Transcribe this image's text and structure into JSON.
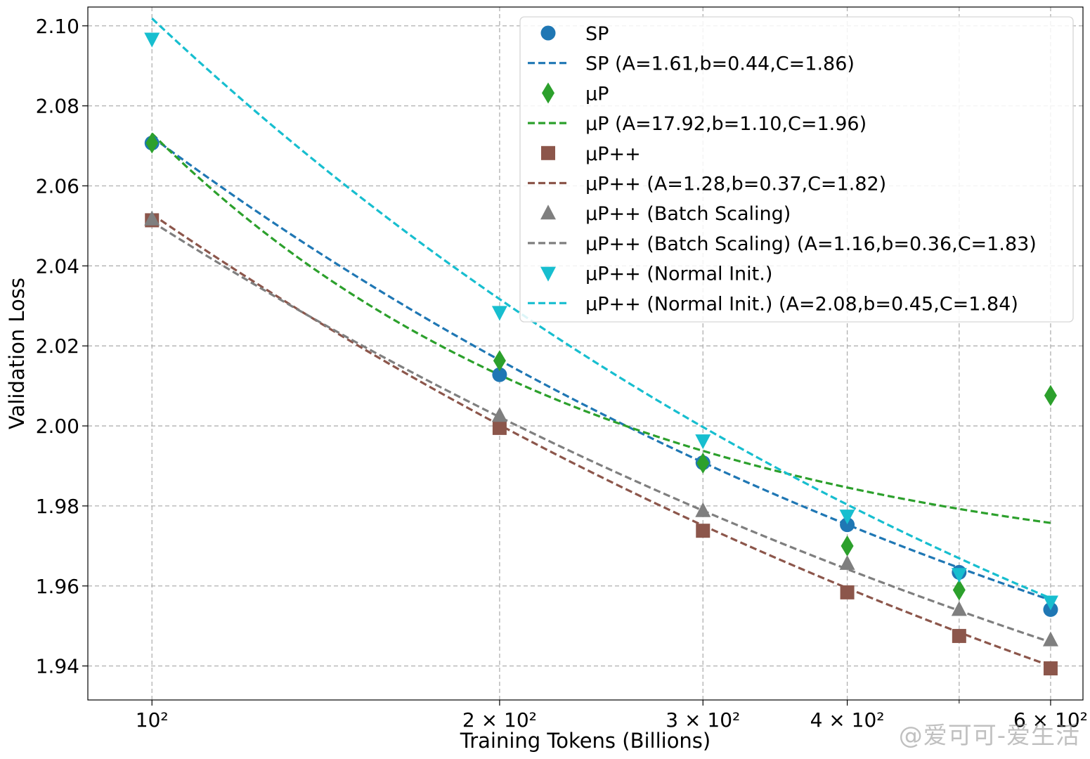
{
  "chart_data": {
    "type": "scatter",
    "xlabel": "Training Tokens (Billions)",
    "ylabel": "Validation Loss",
    "xscale": "log",
    "xlim": [
      88,
      640
    ],
    "ylim": [
      1.9315,
      2.1047
    ],
    "grid": true,
    "legend_position": "top-right",
    "x_ticks": [
      {
        "value": 100,
        "label": "10²"
      },
      {
        "value": 200,
        "label": "2 × 10²"
      },
      {
        "value": 300,
        "label": "3 × 10²"
      },
      {
        "value": 400,
        "label": "4 × 10²"
      },
      {
        "value": 600,
        "label": "6 × 10²"
      }
    ],
    "y_ticks": [
      1.94,
      1.96,
      1.98,
      2.0,
      2.02,
      2.04,
      2.06,
      2.08,
      2.1
    ],
    "y_tick_labels": [
      "1.94",
      "1.96",
      "1.98",
      "2.00",
      "2.02",
      "2.04",
      "2.06",
      "2.08",
      "2.10"
    ],
    "series": [
      {
        "name": "SP",
        "marker": "circle",
        "color": "#1f77b4",
        "x": [
          100,
          200,
          300,
          400,
          500,
          600
        ],
        "y": [
          2.0707,
          2.0128,
          1.9908,
          1.9753,
          1.9634,
          1.9541
        ],
        "fit_label": "SP (A=1.61,b=0.44,C=1.86)",
        "fit": {
          "A": 1.61,
          "b": 0.44,
          "C": 1.86
        }
      },
      {
        "name": "μP",
        "marker": "diamond",
        "color": "#2ca02c",
        "x": [
          100,
          200,
          300,
          400,
          500,
          600
        ],
        "y": [
          2.0707,
          2.0163,
          1.9907,
          1.97,
          1.959,
          2.0076
        ],
        "fit_label": "μP (A=17.92,b=1.10,C=1.96)",
        "fit": {
          "A": 17.92,
          "b": 1.1,
          "C": 1.96
        }
      },
      {
        "name": "μP++",
        "marker": "square",
        "color": "#8c564b",
        "x": [
          100,
          200,
          300,
          400,
          500,
          600
        ],
        "y": [
          2.0514,
          1.9995,
          1.9738,
          1.9584,
          1.9475,
          1.9394
        ],
        "fit_label": "μP++ (A=1.28,b=0.37,C=1.82)",
        "fit": {
          "A": 1.28,
          "b": 0.37,
          "C": 1.82
        }
      },
      {
        "name": "μP++ (Batch Scaling)",
        "marker": "triangle-up",
        "color": "#7f7f7f",
        "x": [
          100,
          200,
          300,
          400,
          500,
          600
        ],
        "y": [
          2.0517,
          2.0026,
          1.9788,
          1.9656,
          1.9541,
          1.9465
        ],
        "fit_label": "μP++ (Batch Scaling) (A=1.16,b=0.36,C=1.83)",
        "fit": {
          "A": 1.16,
          "b": 0.36,
          "C": 1.83
        }
      },
      {
        "name": "μP++ (Normal Init.)",
        "marker": "triangle-down",
        "color": "#17becf",
        "x": [
          100,
          200,
          300,
          400,
          500,
          600
        ],
        "y": [
          2.0967,
          2.0284,
          1.9963,
          1.9775,
          1.9629,
          1.956
        ],
        "fit_label": "μP++ (Normal Init.) (A=2.08,b=0.45,C=1.84)",
        "fit": {
          "A": 2.08,
          "b": 0.45,
          "C": 1.84
        }
      }
    ]
  },
  "watermark": "@爱可可-爱生活"
}
